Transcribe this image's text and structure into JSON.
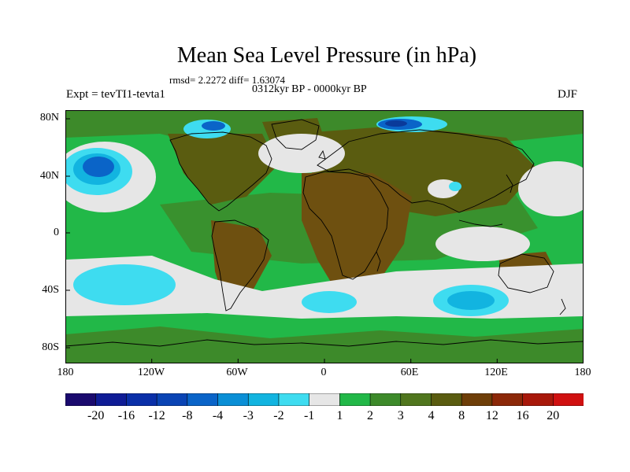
{
  "title": "Mean Sea Level Pressure (in hPa)",
  "stats_line": "rmsd= 2.2272 diff= 1.63074",
  "period": "0312kyr BP - 0000kyr BP",
  "experiment": "Expt = tevTI1-tevta1",
  "season": "DJF",
  "axes": {
    "lat_labels": [
      "80N",
      "40N",
      "0",
      "40S",
      "80S"
    ],
    "lon_labels": [
      "180",
      "120W",
      "60W",
      "0",
      "60E",
      "120E",
      "180"
    ]
  },
  "colorbar": {
    "labels": [
      "-20",
      "-16",
      "-12",
      "-8",
      "-4",
      "-3",
      "-2",
      "-1",
      "1",
      "2",
      "3",
      "4",
      "8",
      "12",
      "16",
      "20"
    ],
    "colors": [
      "#1a0a6e",
      "#0f1c96",
      "#0a2fa8",
      "#0a44b4",
      "#0a64c8",
      "#0a8fd6",
      "#12b4e0",
      "#3edcf0",
      "#e6e6e6",
      "#22b848",
      "#3d8a2a",
      "#50761e",
      "#5a5c10",
      "#6e3e08",
      "#8c2808",
      "#a8180a",
      "#d01010"
    ]
  },
  "map_colors": {
    "background_green": "#22b848",
    "dark_green": "#3d8a2a",
    "olive": "#5a5c10",
    "brown": "#6e5010",
    "near_zero": "#e6e6e6",
    "light_cyan": "#3edcf0",
    "cyan": "#12b4e0",
    "blue": "#0a64c8",
    "dark_blue": "#0a3a9a",
    "coast": "#000000"
  }
}
